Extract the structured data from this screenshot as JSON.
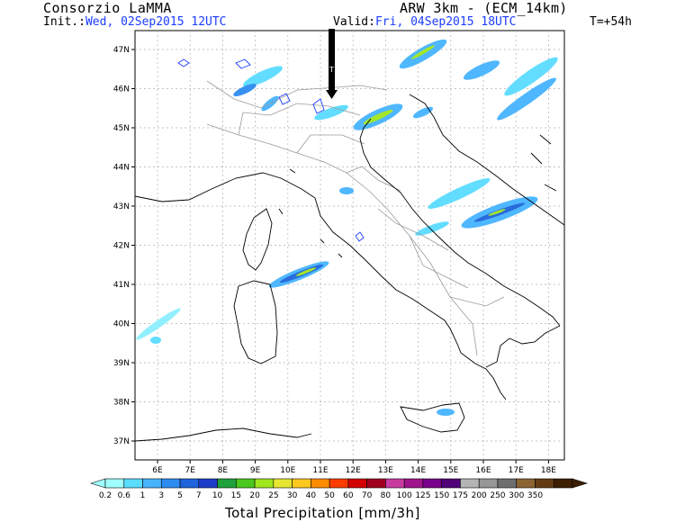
{
  "header": {
    "org": "Consorzio LaMMA",
    "model": "ARW 3km - (ECM_14km)",
    "init_label": "Init.:",
    "init_value": "Wed, 02Sep2015 12UTC",
    "valid_label": "Valid:",
    "valid_value": "Fri, 04Sep2015 18UTC",
    "lead_time": "T=+54h"
  },
  "map": {
    "lat_labels": [
      "47N",
      "46N",
      "45N",
      "44N",
      "43N",
      "42N",
      "41N",
      "40N",
      "39N",
      "38N",
      "37N"
    ],
    "lon_labels": [
      "6E",
      "7E",
      "8E",
      "9E",
      "10E",
      "11E",
      "12E",
      "13E",
      "14E",
      "15E",
      "16E",
      "17E",
      "18E"
    ]
  },
  "legend": {
    "title": "Total Precipitation [mm/3h]",
    "values": [
      "0.2",
      "0.6",
      "1",
      "3",
      "5",
      "7",
      "10",
      "15",
      "20",
      "25",
      "30",
      "40",
      "50",
      "60",
      "70",
      "80",
      "100",
      "125",
      "150",
      "175",
      "200",
      "250",
      "300",
      "350"
    ],
    "colors": [
      "#a0ffff",
      "#5adcff",
      "#46b4ff",
      "#2c8cf0",
      "#1e64dc",
      "#1e3cc8",
      "#1ea03c",
      "#4bc81e",
      "#a0e61e",
      "#e6e632",
      "#ffc81e",
      "#ff8c00",
      "#ff3c00",
      "#d20000",
      "#a0001e",
      "#c83ca0",
      "#a0148c",
      "#78008c",
      "#500078",
      "#b4b4b4",
      "#969696",
      "#6e6e6e",
      "#8c6432",
      "#643c14",
      "#3c1e00"
    ]
  },
  "colors": {
    "land_border": "#9a9a9a",
    "coast": "#000000",
    "lakes": "#1c3cff"
  }
}
